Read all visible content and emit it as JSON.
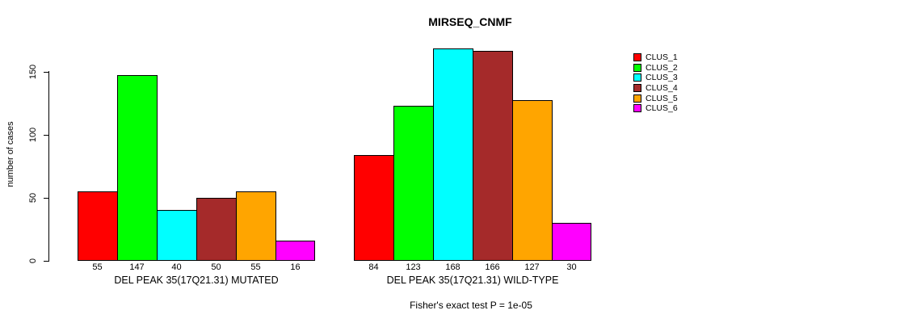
{
  "chart_data": {
    "type": "bar",
    "title": "MIRSEQ_CNMF",
    "ylabel": "number of cases",
    "ylim": [
      0,
      150
    ],
    "yticks": [
      0,
      50,
      100,
      150
    ],
    "grid": false,
    "legend_position": "right-outside",
    "series_labels": [
      "CLUS_1",
      "CLUS_2",
      "CLUS_3",
      "CLUS_4",
      "CLUS_5",
      "CLUS_6"
    ],
    "series_colors": [
      "#ff0000",
      "#00ff00",
      "#00ffff",
      "#a52a2a",
      "#ffa500",
      "#ff00ff"
    ],
    "groups": [
      {
        "label": "DEL PEAK 35(17Q21.31) MUTATED",
        "values": [
          55,
          147,
          40,
          50,
          55,
          16
        ]
      },
      {
        "label": "DEL PEAK 35(17Q21.31) WILD-TYPE",
        "values": [
          84,
          123,
          168,
          166,
          127,
          30
        ]
      }
    ],
    "bar_value_labels_shown": true,
    "annotation": "Fisher's exact test P = 1e-05",
    "axis_color": "#000000",
    "text_color": "#000000"
  }
}
